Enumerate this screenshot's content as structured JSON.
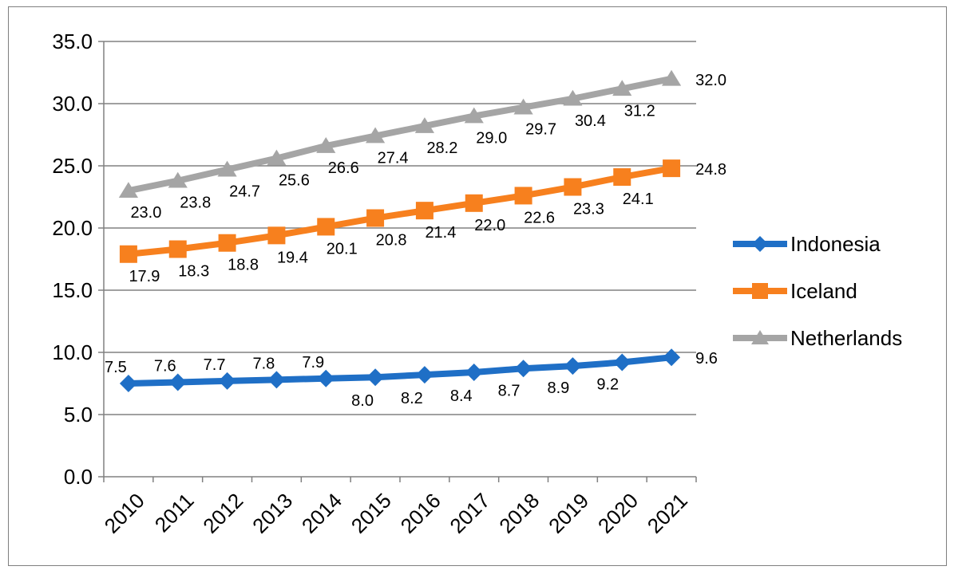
{
  "chart_data": {
    "type": "line",
    "title": "",
    "xlabel": "",
    "ylabel": "",
    "categories": [
      "2010",
      "2011",
      "2012",
      "2013",
      "2014",
      "2015",
      "2016",
      "2017",
      "2018",
      "2019",
      "2020",
      "2021"
    ],
    "ylim": [
      0,
      35
    ],
    "yticks": [
      "0.0",
      "5.0",
      "10.0",
      "15.0",
      "20.0",
      "25.0",
      "30.0",
      "35.0"
    ],
    "grid": "horizontal",
    "legend_position": "right",
    "series": [
      {
        "name": "Indonesia",
        "color": "#1f6fc6",
        "marker": "diamond",
        "values": [
          7.5,
          7.6,
          7.7,
          7.8,
          7.9,
          8.0,
          8.2,
          8.4,
          8.7,
          8.9,
          9.2,
          9.6
        ],
        "labels": [
          "7.5",
          "7.6",
          "7.7",
          "7.8",
          "7.9",
          "8.0",
          "8.2",
          "8.4",
          "8.7",
          "8.9",
          "9.2",
          "9.6"
        ]
      },
      {
        "name": "Iceland",
        "color": "#f7801e",
        "marker": "square",
        "values": [
          17.9,
          18.3,
          18.8,
          19.4,
          20.1,
          20.8,
          21.4,
          22.0,
          22.6,
          23.3,
          24.1,
          24.8
        ],
        "labels": [
          "17.9",
          "18.3",
          "18.8",
          "19.4",
          "20.1",
          "20.8",
          "21.4",
          "22.0",
          "22.6",
          "23.3",
          "24.1",
          "24.8"
        ]
      },
      {
        "name": "Netherlands",
        "color": "#a5a5a5",
        "marker": "triangle",
        "values": [
          23.0,
          23.8,
          24.7,
          25.6,
          26.6,
          27.4,
          28.2,
          29.0,
          29.7,
          30.4,
          31.2,
          32.0
        ],
        "labels": [
          "23.0",
          "23.8",
          "24.7",
          "25.6",
          "26.6",
          "27.4",
          "28.2",
          "29.0",
          "29.7",
          "30.4",
          "31.2",
          "32.0"
        ]
      }
    ]
  }
}
